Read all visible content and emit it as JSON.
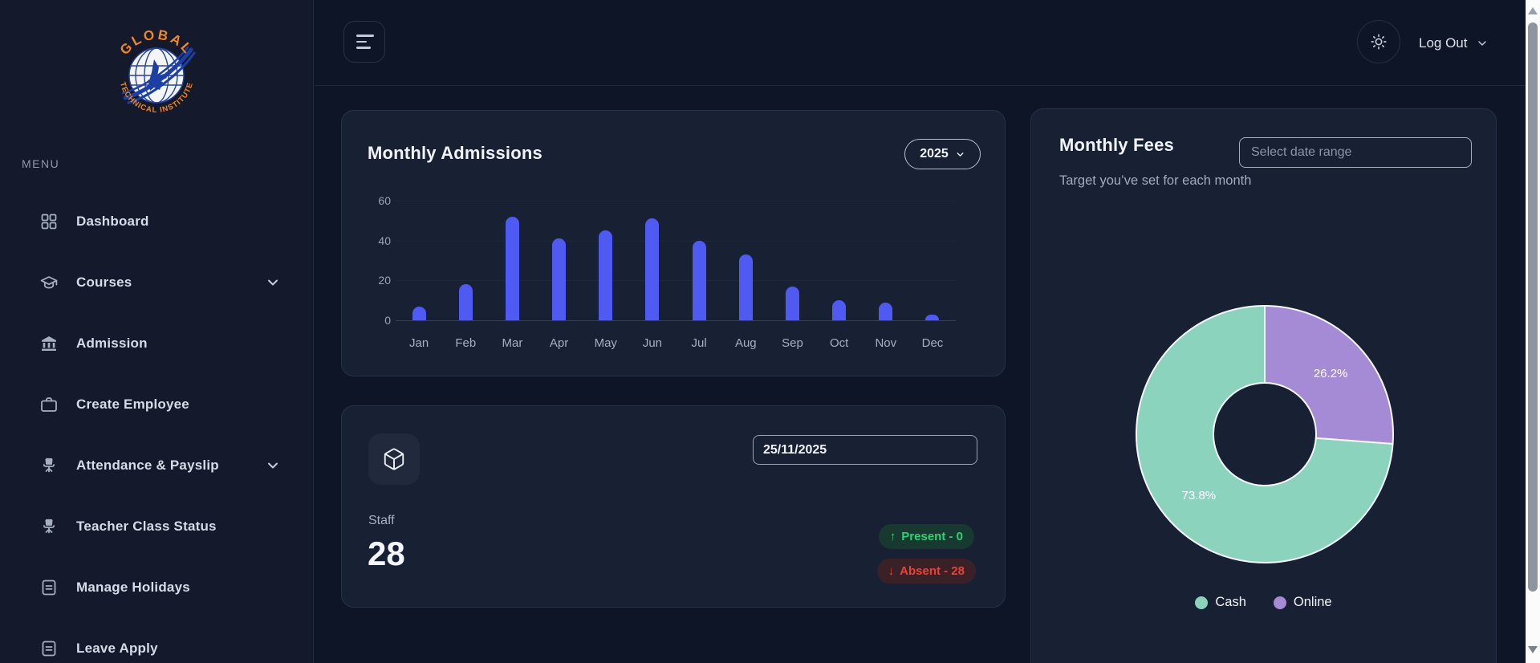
{
  "sidebar": {
    "logo": {
      "top_text": "GLOBAL",
      "bottom_text": "TECHNICAL INSTITUTE"
    },
    "menu_label": "MENU",
    "items": [
      {
        "label": "Dashboard",
        "icon": "grid-icon",
        "expandable": false
      },
      {
        "label": "Courses",
        "icon": "graduation-cap-icon",
        "expandable": true
      },
      {
        "label": "Admission",
        "icon": "bank-icon",
        "expandable": false
      },
      {
        "label": "Create Employee",
        "icon": "briefcase-icon",
        "expandable": false
      },
      {
        "label": "Attendance & Payslip",
        "icon": "office-chair-icon",
        "expandable": true
      },
      {
        "label": "Teacher Class Status",
        "icon": "office-chair-icon",
        "expandable": false
      },
      {
        "label": "Manage Holidays",
        "icon": "file-lines-icon",
        "expandable": false
      },
      {
        "label": "Leave Apply",
        "icon": "file-lines-icon",
        "expandable": false
      }
    ]
  },
  "topbar": {
    "logout_label": "Log Out"
  },
  "admissions_card": {
    "title": "Monthly Admissions",
    "year_selected": "2025"
  },
  "staff_card": {
    "date_value": "25/11/2025",
    "label": "Staff",
    "count": "28",
    "present_text": "Present - 0",
    "absent_text": "Absent - 28"
  },
  "fees_card": {
    "title": "Monthly Fees",
    "date_placeholder": "Select date range",
    "subtitle": "Target you’ve set for each month"
  },
  "icons": {
    "present_arrow": "↑",
    "absent_arrow": "↓"
  },
  "colors": {
    "accent_bar": "#4e5af2",
    "cash_teal": "#8cd3be",
    "online_purple": "#a58ad6",
    "present_green": "#2fd076",
    "absent_red": "#e94235"
  },
  "chart_data": [
    {
      "type": "bar",
      "title": "Monthly Admissions",
      "categories": [
        "Jan",
        "Feb",
        "Mar",
        "Apr",
        "May",
        "Jun",
        "Jul",
        "Aug",
        "Sep",
        "Oct",
        "Nov",
        "Dec"
      ],
      "values": [
        7,
        18,
        52,
        41,
        45,
        51,
        40,
        33,
        17,
        10,
        9,
        3
      ],
      "xlabel": "",
      "ylabel": "",
      "ylim": [
        0,
        60
      ],
      "yticks": [
        0,
        20,
        40,
        60
      ],
      "grid": true,
      "bar_color": "#4e5af2"
    },
    {
      "type": "pie",
      "title": "Monthly Fees",
      "donut": true,
      "slices": [
        {
          "label": "Online",
          "value": 26.2,
          "display": "26.2%",
          "color": "#a58ad6"
        },
        {
          "label": "Cash",
          "value": 73.8,
          "display": "73.8%",
          "color": "#8cd3be"
        }
      ],
      "legend": [
        {
          "label": "Cash",
          "color": "#8cd3be"
        },
        {
          "label": "Online",
          "color": "#a58ad6"
        }
      ],
      "legend_position": "bottom"
    }
  ]
}
